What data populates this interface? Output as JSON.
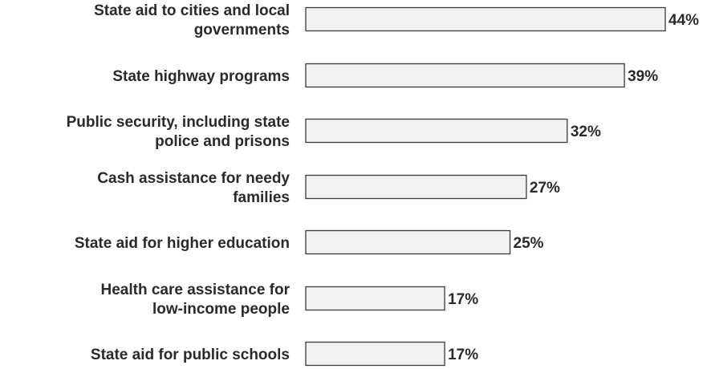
{
  "chart_data": {
    "type": "bar",
    "orientation": "horizontal",
    "categories": [
      [
        "State aid to cities and local",
        "governments"
      ],
      [
        "State highway programs"
      ],
      [
        "Public security, including state",
        "police and prisons"
      ],
      [
        "Cash assistance for needy",
        "families"
      ],
      [
        "State aid for higher education"
      ],
      [
        "Health care assistance for",
        "low-income people"
      ],
      [
        "State aid for public schools"
      ]
    ],
    "values": [
      44,
      39,
      32,
      27,
      25,
      17,
      17
    ],
    "value_labels": [
      "44%",
      "39%",
      "32%",
      "27%",
      "25%",
      "17%",
      "17%"
    ],
    "xlim": [
      0,
      44
    ],
    "grid": false,
    "legend": "none",
    "colors": {
      "bar_fill": "#f1f1f1",
      "bar_stroke": "#3a3a3a",
      "text": "#2a2a2a"
    }
  }
}
